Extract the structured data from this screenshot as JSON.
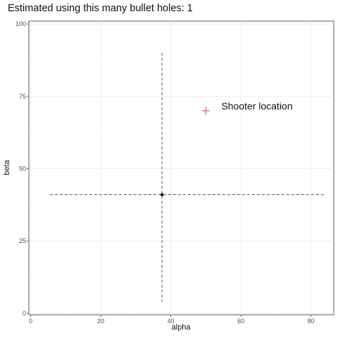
{
  "chart_data": {
    "type": "scatter",
    "title": "Estimated using this many bullet holes: 1",
    "xlabel": "alpha",
    "ylabel": "beta",
    "xlim": [
      -0.5,
      86.5
    ],
    "ylim": [
      -0.5,
      101
    ],
    "x_ticks": [
      0,
      20,
      40,
      60,
      80
    ],
    "y_ticks": [
      0,
      25,
      50,
      75,
      100
    ],
    "grid": true,
    "estimate_point": {
      "x": 37.5,
      "y": 41
    },
    "reference_lines": {
      "vertical": {
        "x": 37.5,
        "y_from": 4,
        "y_to": 90
      },
      "horizontal": {
        "y": 41,
        "x_from": 5.5,
        "x_to": 84
      }
    },
    "shooter": {
      "x": 50,
      "y": 70,
      "marker": "+",
      "label": "Shooter location"
    },
    "colors": {
      "shooter": "#e8373f",
      "point": "#111111",
      "dashed": "#555555"
    }
  }
}
